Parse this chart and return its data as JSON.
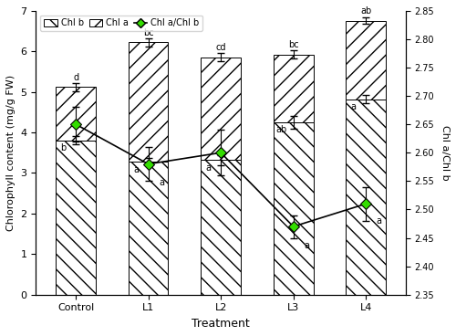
{
  "categories": [
    "Control",
    "L1",
    "L2",
    "L3",
    "L4"
  ],
  "chl_b": [
    3.8,
    3.28,
    3.32,
    4.25,
    4.82
  ],
  "chl_b_err": [
    0.1,
    0.1,
    0.12,
    0.15,
    0.1
  ],
  "chl_a_total": [
    5.12,
    6.22,
    5.85,
    5.92,
    6.75
  ],
  "chl_a_err": [
    0.1,
    0.1,
    0.1,
    0.1,
    0.08
  ],
  "ratio": [
    2.65,
    2.58,
    2.6,
    2.47,
    2.51
  ],
  "ratio_err": [
    0.03,
    0.03,
    0.04,
    0.02,
    0.03
  ],
  "chl_b_sig": [
    "b",
    "a",
    "a",
    "ab",
    "a"
  ],
  "chl_a_sig": [
    "d",
    "bc",
    "cd",
    "bc",
    "ab"
  ],
  "ratio_sig": [
    "",
    "a",
    "",
    "a",
    "a"
  ],
  "ylim_left": [
    0,
    7
  ],
  "ylim_right": [
    2.35,
    2.85
  ],
  "yticks_left": [
    0,
    1,
    2,
    3,
    4,
    5,
    6,
    7
  ],
  "yticks_right": [
    2.35,
    2.4,
    2.45,
    2.5,
    2.55,
    2.6,
    2.65,
    2.7,
    2.75,
    2.8,
    2.85
  ],
  "ylabel_left": "Chlorophyll content (mg/g FW)",
  "ylabel_right": "Chl a/Chl b",
  "xlabel": "Treatment",
  "hatch_chlb": "\\\\",
  "hatch_chla": "//",
  "bar_facecolor": "white",
  "bar_edgecolor": "black",
  "line_color": "black",
  "marker_facecolor": "#33dd00",
  "marker_edgecolor": "black",
  "bar_width": 0.55,
  "figsize": [
    5.0,
    3.68
  ],
  "dpi": 100
}
